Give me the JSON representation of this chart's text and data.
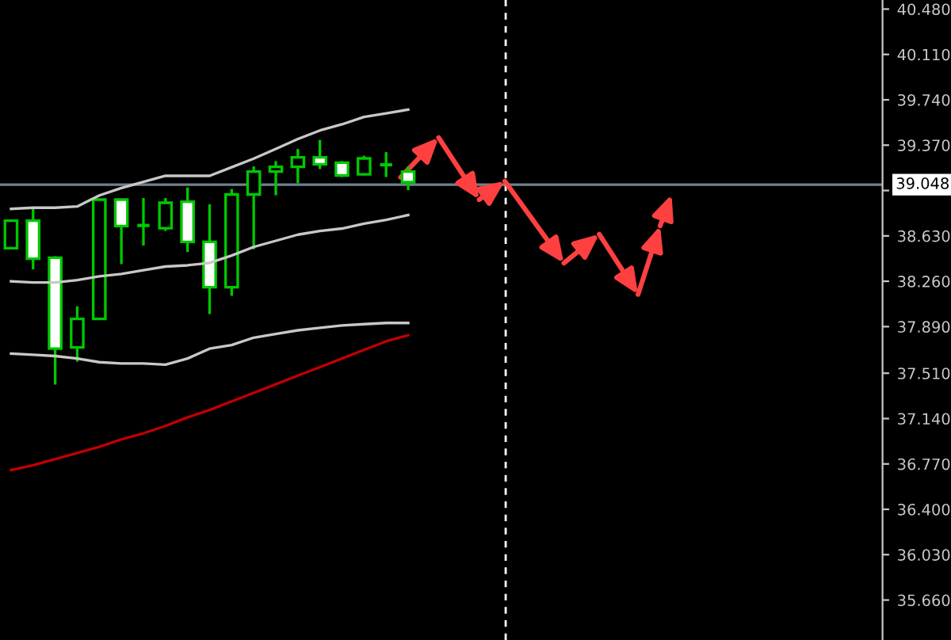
{
  "chart_data": {
    "type": "candlestick",
    "categories": [
      null,
      null,
      null,
      null,
      null,
      null,
      null,
      null,
      null,
      null,
      null,
      null,
      null,
      null,
      null,
      null,
      null,
      null,
      null,
      null,
      null,
      null,
      null,
      null,
      null,
      null,
      null,
      null,
      null,
      null,
      null,
      null,
      null,
      null,
      null,
      null,
      null,
      null,
      null,
      null
    ],
    "ylim": [
      35.334,
      40.554
    ],
    "tick_labels": "y",
    "grid": false,
    "yticks": [
      {
        "value": 40.48,
        "label": "40.480"
      },
      {
        "value": 40.11,
        "label": "40.110"
      },
      {
        "value": 39.74,
        "label": "39.740"
      },
      {
        "value": 39.37,
        "label": "39.370"
      },
      {
        "value": 39.0,
        "label": null
      },
      {
        "value": 38.63,
        "label": "38.630"
      },
      {
        "value": 38.26,
        "label": "38.260"
      },
      {
        "value": 37.89,
        "label": "37.890"
      },
      {
        "value": 37.51,
        "label": "37.510"
      },
      {
        "value": 37.14,
        "label": "37.140"
      },
      {
        "value": 36.77,
        "label": "36.770"
      },
      {
        "value": 36.4,
        "label": "36.400"
      },
      {
        "value": 36.03,
        "label": "36.030"
      },
      {
        "value": 35.66,
        "label": "35.660"
      }
    ],
    "ref_lines": [
      {
        "axis": "y",
        "value": 39.048,
        "label": "39.048",
        "color": "#708090",
        "line_style": "solid"
      }
    ],
    "colors": [
      "#000000",
      "#ffffff",
      "#ffffff",
      "#000000",
      "#000000",
      "#ffffff",
      "#00c800",
      "#000000",
      "#ffffff",
      "#ffffff",
      "#000000",
      "#000000",
      "#000000",
      "#000000",
      "#ffffff",
      "#ffffff",
      "#000000",
      "#00c800",
      "#ffffff",
      null,
      null,
      null,
      null,
      null,
      null,
      null,
      null,
      null,
      null,
      null,
      null,
      null,
      null,
      null,
      null,
      null,
      null,
      null,
      null,
      null
    ],
    "ohlc": [
      [
        38.529,
        38.754,
        38.529,
        38.754
      ],
      [
        38.754,
        38.865,
        38.357,
        38.444
      ],
      [
        38.452,
        38.464,
        37.418,
        37.711
      ],
      [
        37.72,
        38.056,
        37.604,
        37.953
      ],
      [
        37.953,
        38.926,
        37.944,
        38.926
      ],
      [
        38.926,
        38.926,
        38.4,
        38.71
      ],
      [
        38.715,
        38.939,
        38.551,
        38.715
      ],
      [
        38.693,
        38.939,
        38.671,
        38.9
      ],
      [
        38.909,
        39.025,
        38.499,
        38.581
      ],
      [
        38.581,
        38.887,
        37.992,
        38.211
      ],
      [
        38.211,
        39.012,
        38.141,
        38.968
      ],
      [
        38.968,
        39.197,
        38.521,
        39.154
      ],
      [
        39.154,
        39.24,
        38.961,
        39.193
      ],
      [
        39.193,
        39.339,
        39.059,
        39.271
      ],
      [
        39.271,
        39.413,
        39.175,
        39.214
      ],
      [
        39.227,
        39.24,
        39.11,
        39.123
      ],
      [
        39.132,
        39.284,
        39.123,
        39.262
      ],
      [
        39.21,
        39.313,
        39.11,
        39.21
      ],
      [
        39.154,
        39.197,
        39.003,
        39.068
      ],
      null,
      null,
      null,
      null,
      null,
      null,
      null,
      null,
      null,
      null,
      null,
      null,
      null,
      null,
      null,
      null,
      null,
      null,
      null,
      null,
      null
    ],
    "series": [
      {
        "type": "line",
        "color": "#c8c8c8",
        "values": [
          38.85,
          38.86,
          38.86,
          38.87,
          38.96,
          39.02,
          39.07,
          39.12,
          39.12,
          39.12,
          39.19,
          39.26,
          39.34,
          39.42,
          39.49,
          39.54,
          39.6,
          39.63,
          39.66,
          null,
          null,
          null,
          null,
          null,
          null,
          null,
          null,
          null,
          null,
          null,
          null,
          null,
          null,
          null,
          null,
          null,
          null,
          null,
          null,
          null
        ]
      },
      {
        "type": "line",
        "color": "#c8c8c8",
        "values": [
          38.26,
          38.25,
          38.25,
          38.27,
          38.3,
          38.32,
          38.35,
          38.38,
          38.39,
          38.41,
          38.47,
          38.54,
          38.59,
          38.64,
          38.67,
          38.69,
          38.73,
          38.76,
          38.8,
          null,
          null,
          null,
          null,
          null,
          null,
          null,
          null,
          null,
          null,
          null,
          null,
          null,
          null,
          null,
          null,
          null,
          null,
          null,
          null,
          null
        ]
      },
      {
        "type": "line",
        "color": "#c8c8c8",
        "values": [
          37.67,
          37.66,
          37.65,
          37.63,
          37.6,
          37.59,
          37.59,
          37.58,
          37.63,
          37.71,
          37.74,
          37.8,
          37.83,
          37.86,
          37.88,
          37.9,
          37.91,
          37.92,
          37.92,
          null,
          null,
          null,
          null,
          null,
          null,
          null,
          null,
          null,
          null,
          null,
          null,
          null,
          null,
          null,
          null,
          null,
          null,
          null,
          null,
          null
        ]
      },
      {
        "type": "line",
        "color": "#c00000",
        "values": [
          36.72,
          36.76,
          36.81,
          36.86,
          36.91,
          36.97,
          37.02,
          37.08,
          37.15,
          37.21,
          37.28,
          37.35,
          37.42,
          37.49,
          37.56,
          37.63,
          37.7,
          37.77,
          37.82,
          null,
          null,
          null,
          null,
          null,
          null,
          null,
          null,
          null,
          null,
          null,
          null,
          null,
          null,
          null,
          null,
          null,
          null,
          null,
          null,
          null
        ]
      }
    ]
  }
}
